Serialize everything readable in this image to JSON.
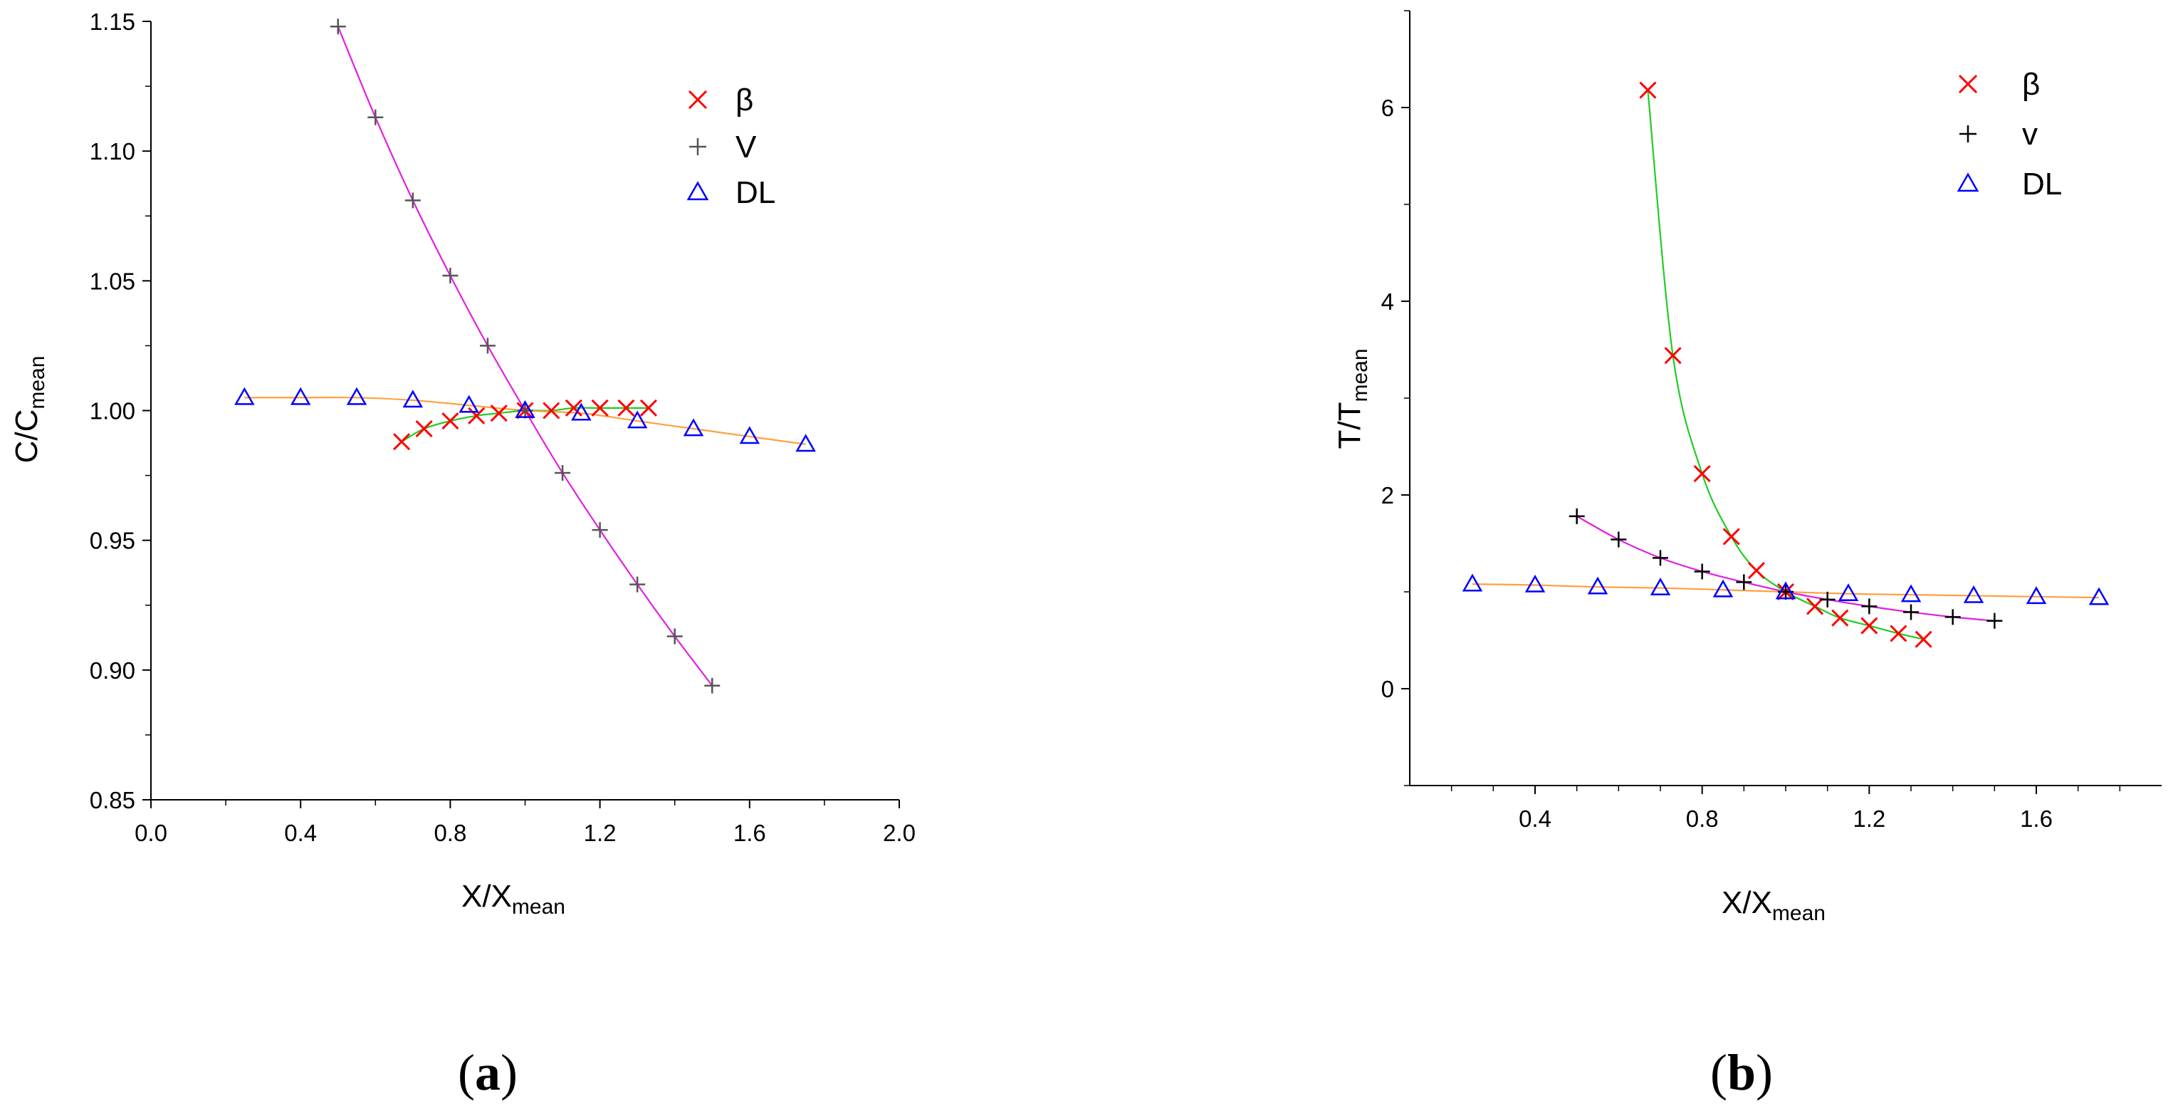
{
  "chart_data": [
    {
      "id": "a",
      "type": "scatter",
      "panel_label": "a",
      "xlabel": "X/X",
      "xlabel_sub": "mean",
      "ylabel": "C/C",
      "ylabel_sub": "mean",
      "xlim": [
        0.0,
        2.0
      ],
      "ylim": [
        0.85,
        1.15
      ],
      "xticks": [
        0.0,
        0.4,
        0.8,
        1.2,
        1.6,
        2.0
      ],
      "xtick_labels": [
        "0.0",
        "0.4",
        "0.8",
        "1.2",
        "1.6",
        "2.0"
      ],
      "yticks": [
        0.85,
        0.9,
        0.95,
        1.0,
        1.05,
        1.1,
        1.15
      ],
      "ytick_labels": [
        "0.85",
        "0.90",
        "0.95",
        "1.00",
        "1.05",
        "1.10",
        "1.15"
      ],
      "legend_position": "top-right",
      "series": [
        {
          "name": "β",
          "marker": "x",
          "color": "#ff0000",
          "line_color": "#22cc22",
          "x": [
            0.67,
            0.73,
            0.8,
            0.87,
            0.93,
            1.0,
            1.07,
            1.13,
            1.2,
            1.27,
            1.33
          ],
          "y": [
            0.988,
            0.993,
            0.996,
            0.998,
            0.999,
            1.0,
            1.0,
            1.001,
            1.001,
            1.001,
            1.001
          ]
        },
        {
          "name": "V",
          "marker": "+",
          "color": "#555555",
          "line_color": "#e020e0",
          "x": [
            0.5,
            0.6,
            0.7,
            0.8,
            0.9,
            1.0,
            1.1,
            1.2,
            1.3,
            1.4,
            1.5
          ],
          "y": [
            1.148,
            1.113,
            1.081,
            1.052,
            1.025,
            1.0,
            0.976,
            0.954,
            0.933,
            0.913,
            0.894
          ]
        },
        {
          "name": "DL",
          "marker": "triangle",
          "color": "#0000ff",
          "line_color": "#ffa040",
          "x": [
            0.25,
            0.4,
            0.55,
            0.7,
            0.85,
            1.0,
            1.15,
            1.3,
            1.45,
            1.6,
            1.75
          ],
          "y": [
            1.005,
            1.005,
            1.005,
            1.004,
            1.002,
            1.0,
            0.999,
            0.996,
            0.993,
            0.99,
            0.987
          ]
        }
      ]
    },
    {
      "id": "b",
      "type": "scatter",
      "panel_label": "b",
      "xlabel": "X/X",
      "xlabel_sub": "mean",
      "ylabel": "T/T",
      "ylabel_sub": "mean",
      "xlim": [
        0.1,
        1.9
      ],
      "ylim": [
        -1,
        7
      ],
      "xticks": [
        0.4,
        0.8,
        1.2,
        1.6
      ],
      "xtick_labels": [
        "0.4",
        "0.8",
        "1.2",
        "1.6"
      ],
      "xminor": [
        0.2,
        0.3,
        0.5,
        0.6,
        0.7,
        0.9,
        1.0,
        1.1,
        1.3,
        1.4,
        1.5,
        1.7,
        1.8
      ],
      "yticks": [
        0,
        2,
        4,
        6
      ],
      "ytick_labels": [
        "0",
        "2",
        "4",
        "6"
      ],
      "yminor": [
        -1,
        1,
        3,
        5,
        7
      ],
      "legend_position": "top-right",
      "series": [
        {
          "name": "β",
          "marker": "x",
          "color": "#ff0000",
          "line_color": "#22cc22",
          "x": [
            0.67,
            0.73,
            0.8,
            0.87,
            0.93,
            1.0,
            1.07,
            1.13,
            1.2,
            1.27,
            1.33
          ],
          "y": [
            6.18,
            3.44,
            2.22,
            1.57,
            1.22,
            1.0,
            0.85,
            0.73,
            0.65,
            0.57,
            0.51
          ]
        },
        {
          "name": "v",
          "marker": "+",
          "color": "#000000",
          "line_color": "#e020e0",
          "x": [
            0.5,
            0.6,
            0.7,
            0.8,
            0.9,
            1.0,
            1.1,
            1.2,
            1.3,
            1.4,
            1.5
          ],
          "y": [
            1.78,
            1.54,
            1.35,
            1.21,
            1.1,
            1.0,
            0.92,
            0.85,
            0.79,
            0.74,
            0.7
          ]
        },
        {
          "name": "DL",
          "marker": "triangle",
          "color": "#0000ff",
          "line_color": "#ffa040",
          "x": [
            0.25,
            0.4,
            0.55,
            0.7,
            0.85,
            1.0,
            1.15,
            1.3,
            1.45,
            1.6,
            1.75
          ],
          "y": [
            1.08,
            1.07,
            1.05,
            1.04,
            1.02,
            1.0,
            0.98,
            0.97,
            0.96,
            0.95,
            0.94
          ]
        }
      ]
    }
  ]
}
